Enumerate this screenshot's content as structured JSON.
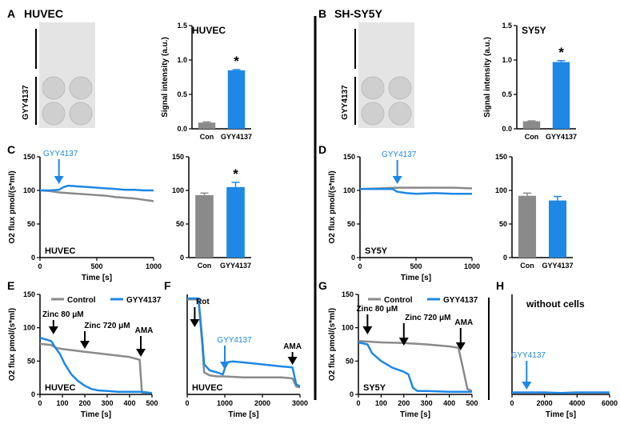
{
  "panel_letters": [
    "A",
    "B",
    "C",
    "D",
    "E",
    "F",
    "G",
    "H"
  ],
  "colors": {
    "control": "#8a8a8a",
    "treated": "#1e88e5",
    "axis": "#000000",
    "dot_bg": "#cfcfcf"
  },
  "blots": [
    {
      "title": "HUVEC",
      "label": "GYY4137"
    },
    {
      "title": "SH-SY5Y",
      "label": "GYY4137"
    }
  ],
  "legend": {
    "control": "Control",
    "treated": "GYY4137"
  },
  "chart_data": [
    {
      "panel": "A",
      "type": "bar",
      "title": "HUVEC",
      "ylabel": "Signal intensity (a.u.)",
      "categories": [
        "Con",
        "GYY4137"
      ],
      "values": [
        0.09,
        0.85
      ],
      "errors": [
        0.01,
        0.01
      ],
      "ylim": [
        0,
        1.5
      ],
      "yticks": [
        "0.0",
        "0.5",
        "1.0",
        "1.5"
      ],
      "significance": "*"
    },
    {
      "panel": "B",
      "type": "bar",
      "title": "SY5Y",
      "ylabel": "Signal intensity (a.u.)",
      "categories": [
        "Con",
        "GYY4137"
      ],
      "values": [
        0.11,
        0.97
      ],
      "errors": [
        0.005,
        0.02
      ],
      "ylim": [
        0,
        1.5
      ],
      "yticks": [
        "0.0",
        "0.5",
        "1.0",
        "1.5"
      ],
      "significance": "*"
    },
    {
      "panel": "C",
      "type": "line",
      "ylabel": "O2 flux pmol/(s*ml)",
      "xlabel": "Time [s]",
      "xlim": [
        0,
        1200
      ],
      "ylim": [
        0,
        150
      ],
      "xticks": [
        "0",
        "500",
        "1000"
      ],
      "yticks": [
        "0",
        "50",
        "100",
        "150"
      ],
      "annotation": "GYY4137",
      "annotation_x": 200,
      "inner_label": "HUVEC",
      "series": [
        {
          "x": [
            0,
            100,
            200,
            300,
            400,
            500,
            600,
            700,
            800,
            900,
            1000,
            1100,
            1200
          ],
          "y": [
            100,
            99,
            97,
            96,
            95,
            94,
            93,
            92,
            90,
            89,
            88,
            86,
            84
          ]
        },
        {
          "x": [
            0,
            100,
            200,
            250,
            300,
            400,
            500,
            600,
            700,
            800,
            900,
            1000,
            1100,
            1200
          ],
          "y": [
            100,
            100,
            101,
            105,
            107,
            106,
            105,
            104,
            103,
            102,
            101,
            101,
            100,
            100
          ]
        }
      ]
    },
    {
      "panel": "C",
      "type": "bar",
      "categories": [
        "Con",
        "GYY4137"
      ],
      "values": [
        93,
        105
      ],
      "errors": [
        3,
        7
      ],
      "ylim": [
        0,
        150
      ],
      "yticks": [
        "0",
        "50",
        "100",
        "150"
      ],
      "significance": "*"
    },
    {
      "panel": "D",
      "type": "line",
      "ylabel": "O2 flux pmol/(s*ml)",
      "xlabel": "Time [s]",
      "xlim": [
        0,
        1200
      ],
      "ylim": [
        0,
        150
      ],
      "xticks": [
        "0",
        "500",
        "1000"
      ],
      "yticks": [
        "0",
        "50",
        "100",
        "150"
      ],
      "annotation": "GYY4137",
      "annotation_x": 400,
      "inner_label": "SY5Y",
      "series": [
        {
          "x": [
            0,
            200,
            400,
            600,
            800,
            1000,
            1200
          ],
          "y": [
            102,
            103,
            104,
            104,
            104,
            104,
            103
          ]
        },
        {
          "x": [
            0,
            200,
            350,
            400,
            500,
            600,
            800,
            1000,
            1200
          ],
          "y": [
            102,
            102,
            102,
            98,
            96,
            95,
            96,
            95,
            95
          ]
        }
      ]
    },
    {
      "panel": "D",
      "type": "bar",
      "categories": [
        "Con",
        "GYY4137"
      ],
      "values": [
        92,
        85
      ],
      "errors": [
        4,
        6
      ],
      "ylim": [
        0,
        150
      ],
      "yticks": [
        "0",
        "50",
        "100",
        "150"
      ],
      "significance": ""
    },
    {
      "panel": "E",
      "type": "line",
      "ylabel": "O2 flux pmol/(s*ml)",
      "xlabel": "Time [s]",
      "xlim": [
        0,
        500
      ],
      "ylim": [
        0,
        150
      ],
      "xticks": [
        "0",
        "100",
        "200",
        "300",
        "400",
        "500"
      ],
      "yticks": [
        "0",
        "50",
        "100",
        "150"
      ],
      "inner_label": "HUVEC",
      "arrows": [
        {
          "text": "Zinc 80 μM",
          "x": 60
        },
        {
          "text": "Zinc 720 μM",
          "x": 200
        },
        {
          "text": "AMA",
          "x": 450
        }
      ],
      "series": [
        {
          "name": "Control",
          "x": [
            0,
            50,
            70,
            100,
            200,
            300,
            400,
            445,
            455,
            470,
            500
          ],
          "y": [
            76,
            74,
            70,
            68,
            64,
            60,
            56,
            52,
            3,
            2,
            2
          ]
        },
        {
          "name": "GYY4137",
          "x": [
            0,
            50,
            65,
            90,
            110,
            140,
            170,
            200,
            230,
            260,
            300,
            350,
            400,
            450,
            500
          ],
          "y": [
            85,
            80,
            72,
            60,
            46,
            30,
            20,
            13,
            8,
            6,
            5,
            4,
            4,
            4,
            2
          ]
        }
      ]
    },
    {
      "panel": "F",
      "type": "line",
      "xlabel": "Time [s]",
      "xlim": [
        0,
        3000
      ],
      "ylim": [
        0,
        100
      ],
      "xticks": [
        "0",
        "1000",
        "2000",
        "3000"
      ],
      "inner_label": "HUVEC",
      "arrows": [
        {
          "text": "Rot",
          "x": 200,
          "color": "#000000"
        },
        {
          "text": "GYY4137",
          "x": 1000,
          "color": "#1e88e5"
        },
        {
          "text": "AMA",
          "x": 2800,
          "color": "#000000"
        }
      ],
      "series": [
        {
          "x": [
            0,
            300,
            400,
            450,
            600,
            800,
            1000,
            1500,
            2000,
            2500,
            2800,
            2900,
            3000
          ],
          "y": [
            95,
            95,
            50,
            22,
            19,
            18,
            18,
            17,
            17,
            17,
            16,
            8,
            7
          ]
        },
        {
          "x": [
            0,
            300,
            400,
            450,
            600,
            800,
            950,
            1050,
            1200,
            1500,
            2000,
            2500,
            2800,
            2900,
            3000
          ],
          "y": [
            96,
            96,
            55,
            30,
            24,
            22,
            20,
            32,
            33,
            32,
            30,
            28,
            27,
            10,
            8
          ]
        }
      ]
    },
    {
      "panel": "G",
      "type": "line",
      "ylabel": "O2 flux pmol/(s*ml)",
      "xlabel": "Time [s]",
      "xlim": [
        0,
        500
      ],
      "ylim": [
        0,
        150
      ],
      "xticks": [
        "0",
        "100",
        "200",
        "300",
        "400",
        "500"
      ],
      "yticks": [
        "0",
        "50",
        "100",
        "150"
      ],
      "inner_label": "SY5Y",
      "arrows": [
        {
          "text": "Zinc 80 μM",
          "x": 40
        },
        {
          "text": "Zinc 720 μM",
          "x": 200
        },
        {
          "text": "AMA",
          "x": 450
        }
      ],
      "series": [
        {
          "name": "Control",
          "x": [
            0,
            100,
            200,
            300,
            400,
            440,
            460,
            480,
            500
          ],
          "y": [
            80,
            78,
            77,
            75,
            72,
            70,
            40,
            8,
            5
          ]
        },
        {
          "name": "GYY4137",
          "x": [
            0,
            40,
            60,
            100,
            150,
            200,
            220,
            240,
            260,
            300,
            400,
            500
          ],
          "y": [
            78,
            75,
            62,
            50,
            40,
            34,
            30,
            10,
            5,
            5,
            4,
            4
          ]
        }
      ]
    },
    {
      "panel": "H",
      "type": "line",
      "title": "without cells",
      "xlabel": "Time [s]",
      "xlim": [
        0,
        6000
      ],
      "ylim": [
        0,
        150
      ],
      "xticks": [
        "0",
        "2000",
        "4000",
        "6000"
      ],
      "annotation": "GYY4137",
      "annotation_x": 900,
      "series": [
        {
          "x": [
            0,
            1000,
            2000,
            3000,
            4000,
            5000,
            6000
          ],
          "y": [
            2,
            2,
            2,
            2,
            2,
            2,
            2
          ]
        },
        {
          "x": [
            0,
            1000,
            2000,
            3000,
            4000,
            5000,
            6000
          ],
          "y": [
            3,
            3,
            3,
            2,
            3,
            3,
            3
          ]
        }
      ]
    }
  ]
}
